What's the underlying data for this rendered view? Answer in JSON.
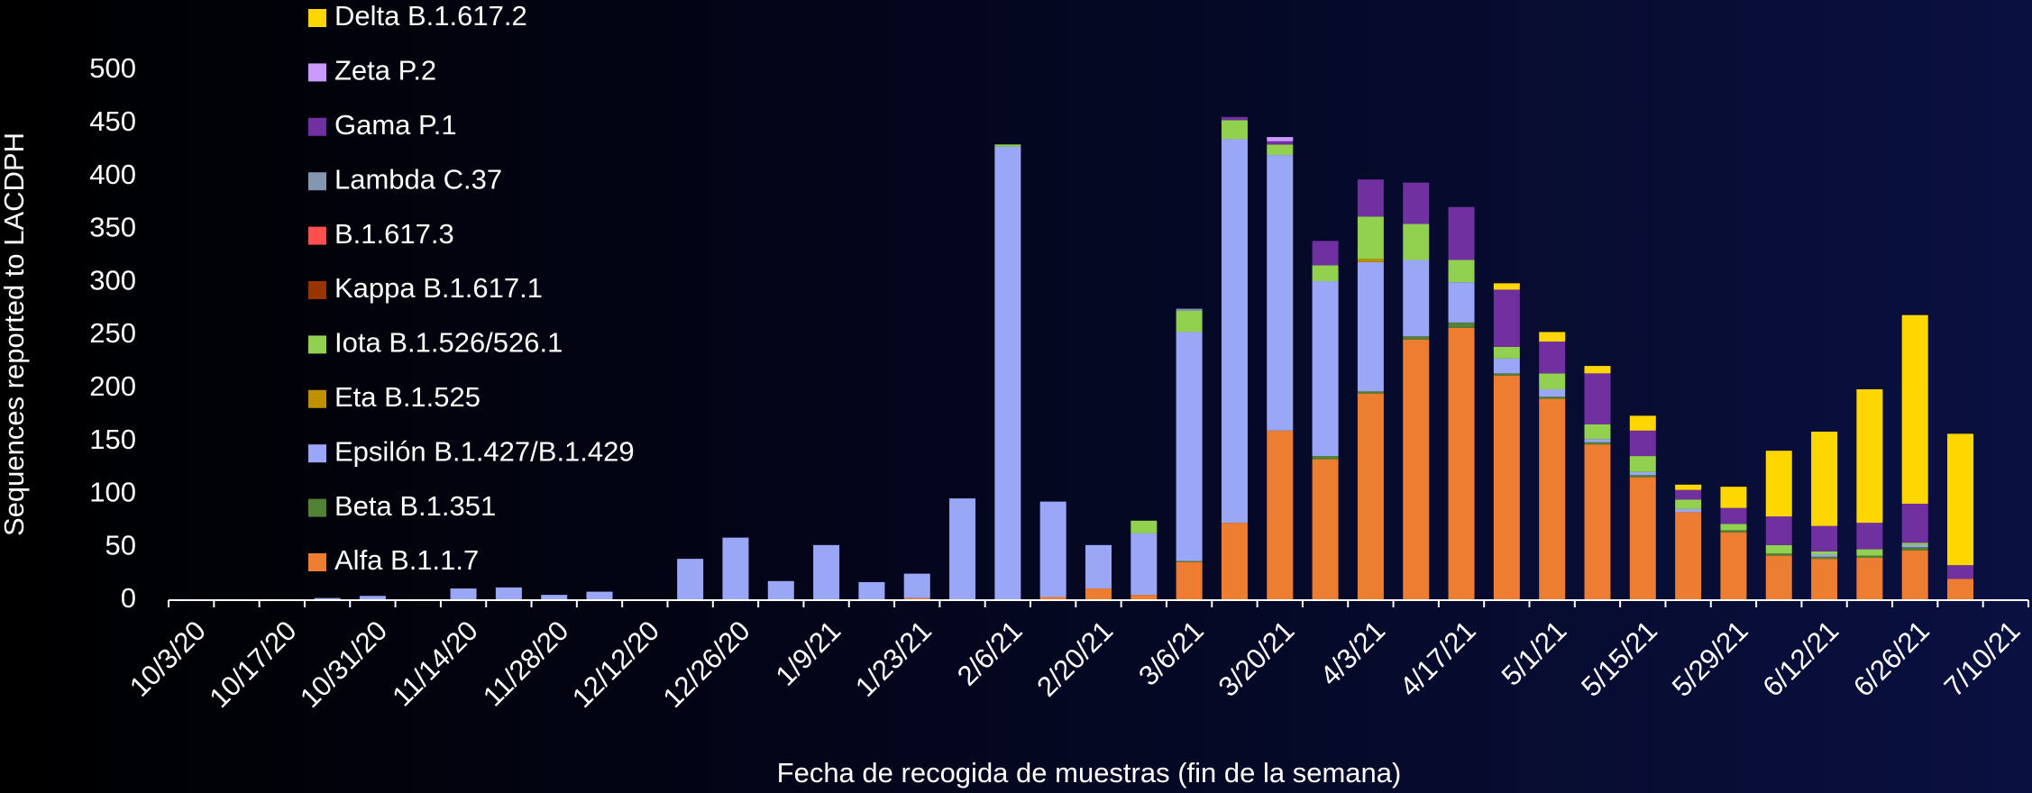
{
  "chart_data": {
    "type": "stacked_bar",
    "x_label": "Fecha de recogida de muestras (fin de la semana)",
    "y_label": "Sequences reported to LACDPH",
    "categories": [
      "10/3/20",
      null,
      "10/17/20",
      null,
      "10/31/20",
      null,
      "11/14/20",
      null,
      "11/28/20",
      null,
      "12/12/20",
      null,
      "12/26/20",
      null,
      "1/9/21",
      null,
      "1/23/21",
      null,
      "2/6/21",
      null,
      "2/20/21",
      null,
      "3/6/21",
      null,
      "3/20/21",
      null,
      "4/3/21",
      null,
      "4/17/21",
      null,
      "5/1/21",
      null,
      "5/15/21",
      null,
      "5/29/21",
      null,
      "6/12/21",
      null,
      "6/26/21",
      null,
      "7/10/21"
    ],
    "ylim": [
      0,
      500
    ],
    "yticks": [
      0,
      50,
      100,
      150,
      200,
      250,
      300,
      350,
      400,
      450,
      500
    ],
    "grid": false,
    "legend": "left",
    "series": [
      {
        "name": "Alfa B.1.1.7",
        "color": "#ed7d31",
        "values": [
          0,
          0,
          0,
          0,
          0,
          0,
          0,
          0,
          0,
          0,
          0,
          0,
          0,
          0,
          0,
          0,
          2,
          0,
          0,
          3,
          11,
          5,
          36,
          73,
          160,
          133,
          195,
          246,
          257,
          212,
          190,
          147,
          116,
          83,
          64,
          42,
          39,
          40,
          47,
          20,
          0
        ]
      },
      {
        "name": "Beta B.1.351",
        "color": "#548235",
        "values": [
          0,
          0,
          0,
          0,
          0,
          0,
          0,
          0,
          0,
          0,
          0,
          0,
          0,
          0,
          0,
          0,
          0,
          0,
          0,
          0,
          0,
          0,
          1,
          0,
          0,
          3,
          2,
          3,
          5,
          2,
          2,
          2,
          2,
          0,
          2,
          2,
          2,
          2,
          3,
          0,
          0
        ]
      },
      {
        "name": "Epsilón B.1.427/B.1.429",
        "color": "#9aa7f7",
        "values": [
          0,
          0,
          0,
          2,
          4,
          0,
          11,
          12,
          5,
          8,
          0,
          39,
          59,
          18,
          52,
          17,
          23,
          96,
          428,
          90,
          41,
          58,
          216,
          362,
          260,
          165,
          122,
          72,
          38,
          14,
          7,
          3,
          3,
          3,
          0,
          0,
          2,
          0,
          2,
          0,
          0
        ]
      },
      {
        "name": "Eta B.1.525",
        "color": "#bf9000",
        "values": [
          0,
          0,
          0,
          0,
          0,
          0,
          0,
          0,
          0,
          0,
          0,
          0,
          0,
          0,
          0,
          0,
          0,
          0,
          0,
          0,
          0,
          0,
          0,
          0,
          0,
          0,
          3,
          0,
          0,
          0,
          0,
          0,
          0,
          0,
          0,
          0,
          0,
          0,
          0,
          0,
          0
        ]
      },
      {
        "name": "Iota B.1.526/526.1",
        "color": "#92d050",
        "values": [
          0,
          0,
          0,
          0,
          0,
          0,
          0,
          0,
          0,
          0,
          0,
          0,
          0,
          0,
          0,
          0,
          0,
          0,
          2,
          0,
          0,
          12,
          20,
          18,
          10,
          15,
          40,
          34,
          21,
          11,
          15,
          14,
          15,
          9,
          6,
          8,
          3,
          6,
          2,
          0,
          0
        ]
      },
      {
        "name": "Kappa B.1.617.1",
        "color": "#993300",
        "values": [
          0,
          0,
          0,
          0,
          0,
          0,
          0,
          0,
          0,
          0,
          0,
          0,
          0,
          0,
          0,
          0,
          0,
          0,
          0,
          0,
          0,
          0,
          0,
          0,
          0,
          0,
          0,
          0,
          0,
          0,
          0,
          0,
          0,
          0,
          0,
          0,
          0,
          0,
          0,
          0,
          0
        ]
      },
      {
        "name": "B.1.617.3",
        "color": "#ff5050",
        "values": [
          0,
          0,
          0,
          0,
          0,
          0,
          0,
          0,
          0,
          0,
          0,
          0,
          0,
          0,
          0,
          0,
          0,
          0,
          0,
          0,
          0,
          0,
          0,
          0,
          0,
          0,
          0,
          0,
          0,
          0,
          0,
          0,
          0,
          0,
          0,
          0,
          0,
          0,
          0,
          0,
          0
        ]
      },
      {
        "name": "Lambda C.37",
        "color": "#8497b0",
        "values": [
          0,
          0,
          0,
          0,
          0,
          0,
          0,
          0,
          0,
          0,
          0,
          0,
          0,
          0,
          0,
          0,
          0,
          0,
          0,
          0,
          0,
          0,
          2,
          0,
          0,
          0,
          0,
          0,
          0,
          0,
          0,
          0,
          0,
          0,
          0,
          0,
          0,
          0,
          0,
          0,
          0
        ]
      },
      {
        "name": "Gama P.1",
        "color": "#7030a0",
        "values": [
          0,
          0,
          0,
          0,
          0,
          0,
          0,
          0,
          0,
          0,
          0,
          0,
          0,
          0,
          0,
          0,
          0,
          0,
          0,
          0,
          0,
          0,
          0,
          3,
          3,
          23,
          35,
          39,
          50,
          54,
          30,
          48,
          24,
          9,
          15,
          27,
          24,
          25,
          37,
          13,
          0
        ]
      },
      {
        "name": "Zeta P.2",
        "color": "#cc99ff",
        "values": [
          0,
          0,
          0,
          0,
          0,
          0,
          0,
          0,
          0,
          0,
          0,
          0,
          0,
          0,
          0,
          0,
          0,
          0,
          0,
          0,
          0,
          0,
          0,
          0,
          4,
          0,
          0,
          0,
          0,
          0,
          0,
          0,
          0,
          0,
          0,
          0,
          0,
          0,
          0,
          0,
          0
        ]
      },
      {
        "name": "Delta B.1.617.2",
        "color": "#ffd700",
        "values": [
          0,
          0,
          0,
          0,
          0,
          0,
          0,
          0,
          0,
          0,
          0,
          0,
          0,
          0,
          0,
          0,
          0,
          0,
          0,
          0,
          0,
          0,
          0,
          0,
          0,
          0,
          0,
          0,
          0,
          6,
          9,
          7,
          14,
          5,
          20,
          62,
          89,
          126,
          178,
          124,
          0
        ]
      }
    ]
  }
}
